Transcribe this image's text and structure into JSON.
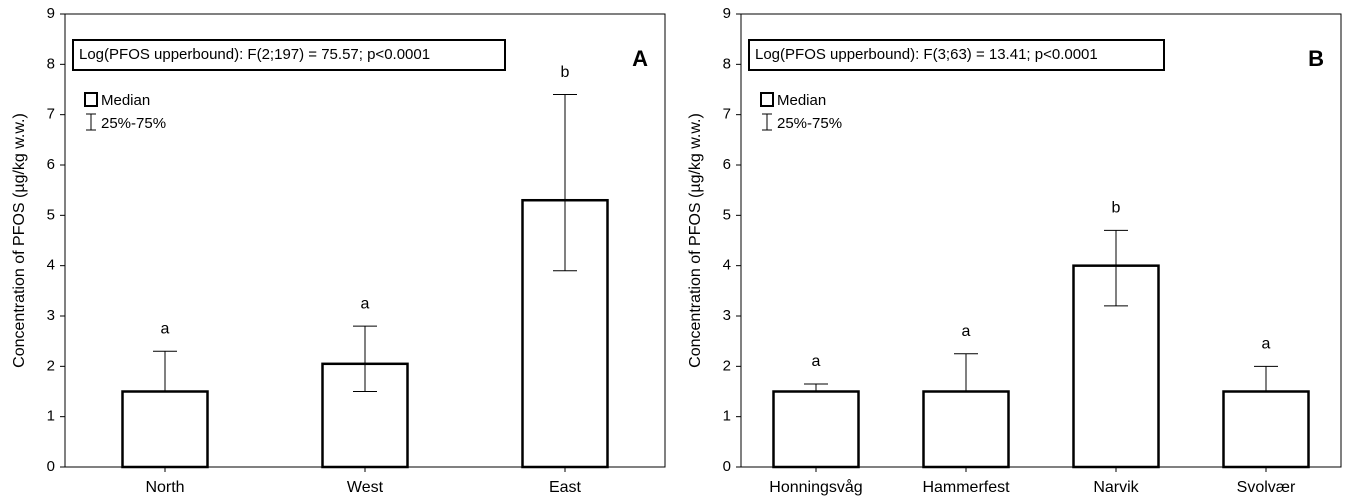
{
  "chart_data": [
    {
      "type": "bar",
      "panel_label": "A",
      "annotation": "Log(PFOS upperbound): F(2;197) = 75.57; p<0.0001",
      "y_label": "Concentration of PFOS (µg/kg w.w.)",
      "legend": [
        "Median",
        "25%-75%"
      ],
      "categories": [
        "North",
        "West",
        "East"
      ],
      "values": [
        1.5,
        2.05,
        5.3
      ],
      "q25": [
        1.5,
        1.5,
        3.9
      ],
      "q75": [
        2.3,
        2.8,
        7.4
      ],
      "significance": [
        "a",
        "a",
        "b"
      ],
      "color": "#ffffff",
      "ylim": [
        0,
        9
      ],
      "yticks": [
        0,
        1,
        2,
        3,
        4,
        5,
        6,
        7,
        8,
        9
      ]
    },
    {
      "type": "bar",
      "panel_label": "B",
      "annotation": "Log(PFOS upperbound): F(3;63) = 13.41; p<0.0001",
      "y_label": "Concentration of PFOS (µg/kg w.w.)",
      "legend": [
        "Median",
        "25%-75%"
      ],
      "categories": [
        "Honningsvåg",
        "Hammerfest",
        "Narvik",
        "Svolvær"
      ],
      "values": [
        1.5,
        1.5,
        4.0,
        1.5
      ],
      "q25": [
        1.5,
        1.5,
        3.2,
        1.5
      ],
      "q75": [
        1.65,
        2.25,
        4.7,
        2.0
      ],
      "significance": [
        "a",
        "a",
        "b",
        "a"
      ],
      "color": "#ffffff",
      "ylim": [
        0,
        9
      ],
      "yticks": [
        0,
        1,
        2,
        3,
        4,
        5,
        6,
        7,
        8,
        9
      ]
    }
  ]
}
